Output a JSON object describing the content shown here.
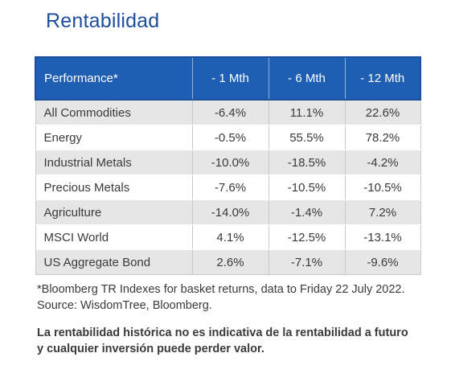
{
  "title": "Rentabilidad",
  "table": {
    "headers": [
      "Performance*",
      "- 1 Mth",
      "- 6 Mth",
      "- 12 Mth"
    ],
    "rows": [
      [
        "All Commodities",
        "-6.4%",
        "11.1%",
        "22.6%"
      ],
      [
        "Energy",
        "-0.5%",
        "55.5%",
        "78.2%"
      ],
      [
        "Industrial Metals",
        "-10.0%",
        "-18.5%",
        "-4.2%"
      ],
      [
        "Precious Metals",
        "-7.6%",
        "-10.5%",
        "-10.5%"
      ],
      [
        "Agriculture",
        "-14.0%",
        "-1.4%",
        "7.2%"
      ],
      [
        "MSCI World",
        "4.1%",
        "-12.5%",
        "-13.1%"
      ],
      [
        "US Aggregate Bond",
        "2.6%",
        "-7.1%",
        "-9.6%"
      ]
    ]
  },
  "footnote": "*Bloomberg TR Indexes for basket returns, data to Friday 22 July 2022. Source: WisdomTree, Bloomberg.",
  "disclaimer": "La rentabilidad histórica no es indicativa de la rentabilidad a futuro y cualquier inversión puede perder valor.",
  "colors": {
    "title": "#1f4f9c",
    "header_bg": "#1f5fb3",
    "row_alt": "#e6e6e6"
  }
}
